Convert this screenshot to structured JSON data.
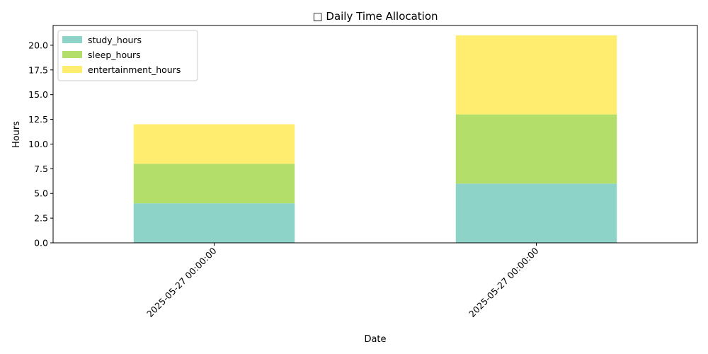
{
  "chart_data": {
    "type": "bar",
    "stacked": true,
    "title": "□ Daily Time Allocation",
    "xlabel": "Date",
    "ylabel": "Hours",
    "categories": [
      "2025-05-27 00:00:00",
      "2025-05-27 00:00:00"
    ],
    "series": [
      {
        "name": "study_hours",
        "values": [
          4,
          6
        ],
        "color": "#8dd3c7"
      },
      {
        "name": "sleep_hours",
        "values": [
          4,
          7
        ],
        "color": "#b3de69"
      },
      {
        "name": "entertainment_hours",
        "values": [
          4,
          8
        ],
        "color": "#ffed6f"
      }
    ],
    "ylim": [
      0,
      22
    ],
    "yticks": [
      "0.0",
      "2.5",
      "5.0",
      "7.5",
      "10.0",
      "12.5",
      "15.0",
      "17.5",
      "20.0"
    ],
    "legend": "top-left",
    "grid": false
  }
}
